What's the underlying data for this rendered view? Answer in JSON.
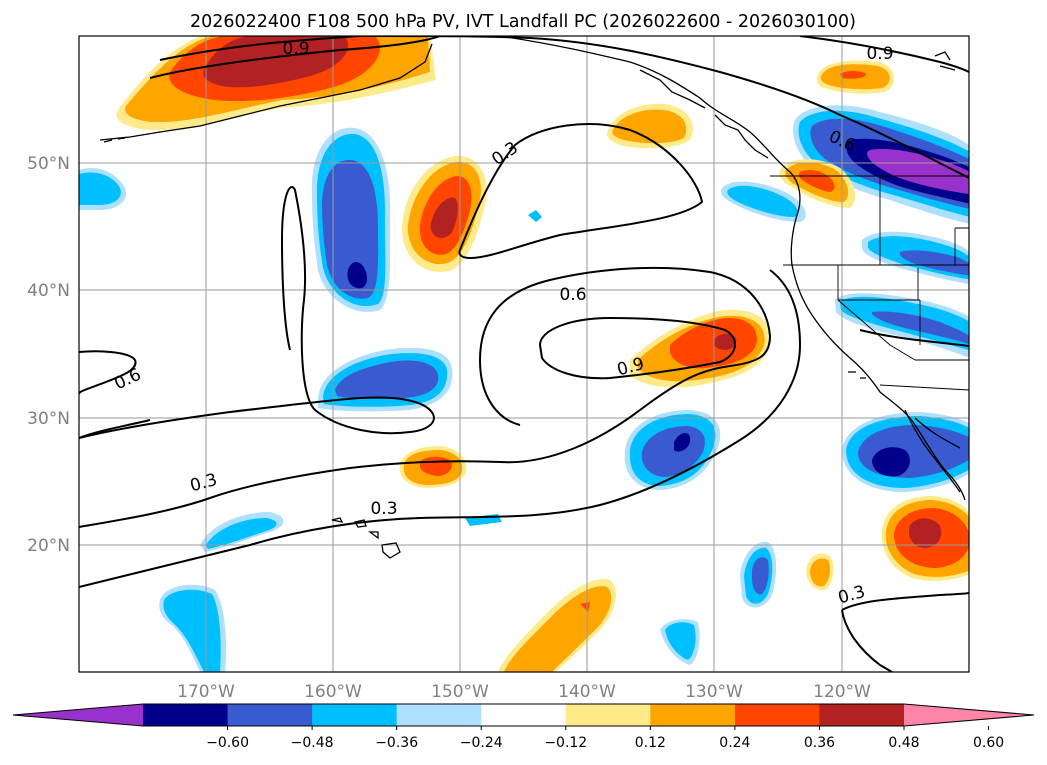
{
  "title": "2026022400 F108 500 hPa PV, IVT Landfall PC (2026022600 - 2026030100)",
  "colors": {
    "pos_low": "#FFEA8A",
    "pos_mid": "#FFA500",
    "pos_high": "#FF4500",
    "pos_higher": "#B22222",
    "pos_top": "#FF85A8",
    "neg_low": "#ADDFFF",
    "neg_mid": "#00BFFF",
    "neg_high": "#3A5BCF",
    "neg_higher": "#00008B",
    "neg_top": "#9932CC"
  },
  "chart_data": {
    "type": "map",
    "title": "2026022400 F108 500 hPa PV, IVT Landfall PC (2026022600 - 2026030100)",
    "x_ticks": [
      "170°W",
      "160°W",
      "150°W",
      "140°W",
      "130°W",
      "120°W"
    ],
    "y_ticks": [
      "50°N",
      "40°N",
      "30°N",
      "20°N"
    ],
    "lon_range": [
      -180,
      -110
    ],
    "lat_range": [
      10,
      60
    ],
    "colorbar": {
      "ticks": [
        "−0.60",
        "−0.48",
        "−0.36",
        "−0.24",
        "−0.12",
        "0.12",
        "0.24",
        "0.36",
        "0.48",
        "0.60"
      ],
      "levels": [
        -0.6,
        -0.48,
        -0.36,
        -0.24,
        -0.12,
        0.12,
        0.24,
        0.36,
        0.48,
        0.6
      ],
      "colors": [
        "#9932CC",
        "#00008B",
        "#3A5BCF",
        "#00BFFF",
        "#ADDFFF",
        "#FFFFFF",
        "#FFEA8A",
        "#FFA500",
        "#FF4500",
        "#B22222",
        "#FF85A8"
      ],
      "extend": "both"
    },
    "contour_levels": [
      0.3,
      0.6,
      0.9
    ],
    "contour_labels": [
      "0.9",
      "0.3",
      "0.6",
      "0.9",
      "0.6",
      "0.9",
      "0.6",
      "0.3",
      "0.3",
      "0.3"
    ]
  }
}
